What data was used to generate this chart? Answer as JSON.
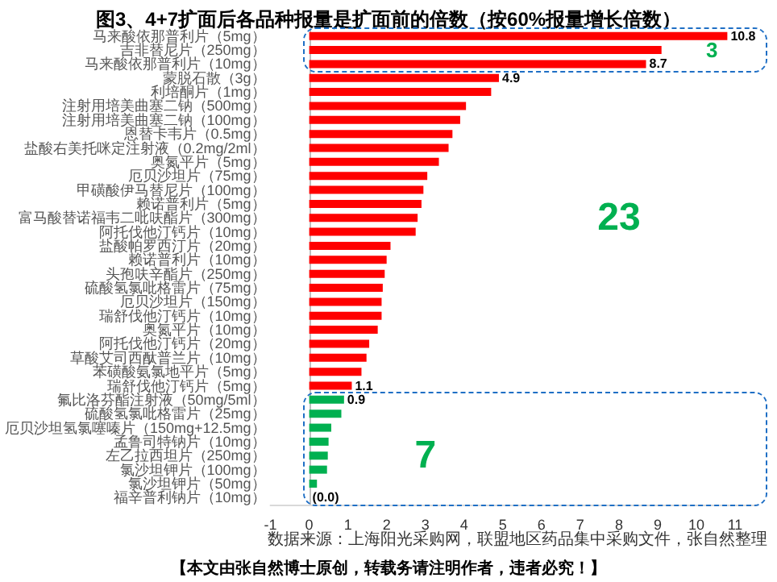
{
  "chart_data": {
    "type": "bar",
    "orientation": "horizontal",
    "title": "图3、4+7扩面后各品种报量是扩面前的倍数（按60%报量增长倍数）",
    "categories": [
      "马来酸依那普利片（5mg）",
      "吉非替尼片（250mg）",
      "马来酸依那普利片（10mg）",
      "蒙脱石散（3g）",
      "利培酮片（1mg）",
      "注射用培美曲塞二钠（500mg）",
      "注射用培美曲塞二钠（100mg）",
      "恩替卡韦片（0.5mg）",
      "盐酸右美托咪定注射液（0.2mg/2ml）",
      "奥氮平片（5mg）",
      "厄贝沙坦片（75mg）",
      "甲磺酸伊马替尼片（100mg）",
      "赖诺普利片（5mg）",
      "富马酸替诺福韦二吡呋酯片（300mg）",
      "阿托伐他汀钙片（10mg）",
      "盐酸帕罗西汀片（20mg）",
      "赖诺普利片（10mg）",
      "头孢呋辛酯片（250mg）",
      "硫酸氢氯吡格雷片（75mg）",
      "厄贝沙坦片（150mg）",
      "瑞舒伐他汀钙片（10mg）",
      "奥氮平片（10mg）",
      "阿托伐他汀钙片（20mg）",
      "草酸艾司西酞普兰片（10mg）",
      "苯磺酸氨氯地平片（5mg）",
      "瑞舒伐他汀钙片（5mg）",
      "氟比洛芬酯注射液（50mg/5ml）",
      "硫酸氢氯吡格雷片（25mg）",
      "厄贝沙坦氢氯噻嗪片（150mg+12.5mg）",
      "孟鲁司特钠片（10mg）",
      "左乙拉西坦片（250mg）",
      "氯沙坦钾片（100mg）",
      "氯沙坦钾片（50mg）",
      "福辛普利钠片（10mg）"
    ],
    "values": [
      10.8,
      9.1,
      8.7,
      4.9,
      4.7,
      4.05,
      3.9,
      3.7,
      3.6,
      3.35,
      3.05,
      2.95,
      2.9,
      2.8,
      2.75,
      2.1,
      2.0,
      1.95,
      1.9,
      1.87,
      1.87,
      1.77,
      1.55,
      1.48,
      1.35,
      1.1,
      0.9,
      0.83,
      0.57,
      0.5,
      0.48,
      0.46,
      0.2,
      0.0
    ],
    "colors": [
      "#ff0000",
      "#ff0000",
      "#ff0000",
      "#ff0000",
      "#ff0000",
      "#ff0000",
      "#ff0000",
      "#ff0000",
      "#ff0000",
      "#ff0000",
      "#ff0000",
      "#ff0000",
      "#ff0000",
      "#ff0000",
      "#ff0000",
      "#ff0000",
      "#ff0000",
      "#ff0000",
      "#ff0000",
      "#ff0000",
      "#ff0000",
      "#ff0000",
      "#ff0000",
      "#ff0000",
      "#ff0000",
      "#ff0000",
      "#00b050",
      "#00b050",
      "#00b050",
      "#00b050",
      "#00b050",
      "#00b050",
      "#00b050",
      "#00b050"
    ],
    "value_labels": [
      "10.8",
      null,
      "8.7",
      "4.9",
      null,
      null,
      null,
      null,
      null,
      null,
      null,
      null,
      null,
      null,
      null,
      null,
      null,
      null,
      null,
      null,
      null,
      null,
      null,
      null,
      null,
      "1.1",
      "0.9",
      null,
      null,
      null,
      null,
      null,
      null,
      "(0.0)"
    ],
    "xlim": [
      -1,
      11.5
    ],
    "xticks": [
      -1,
      0,
      1,
      2,
      3,
      4,
      5,
      6,
      7,
      8,
      9,
      10,
      11
    ],
    "annotations": [
      "3",
      "23",
      "7",
      "数据来源：上海阳光采购网，联盟地区药品集中采购文件，张自然整理",
      "【本文由张自然博士原创，转载务请注明作者，违者必究！】"
    ]
  }
}
